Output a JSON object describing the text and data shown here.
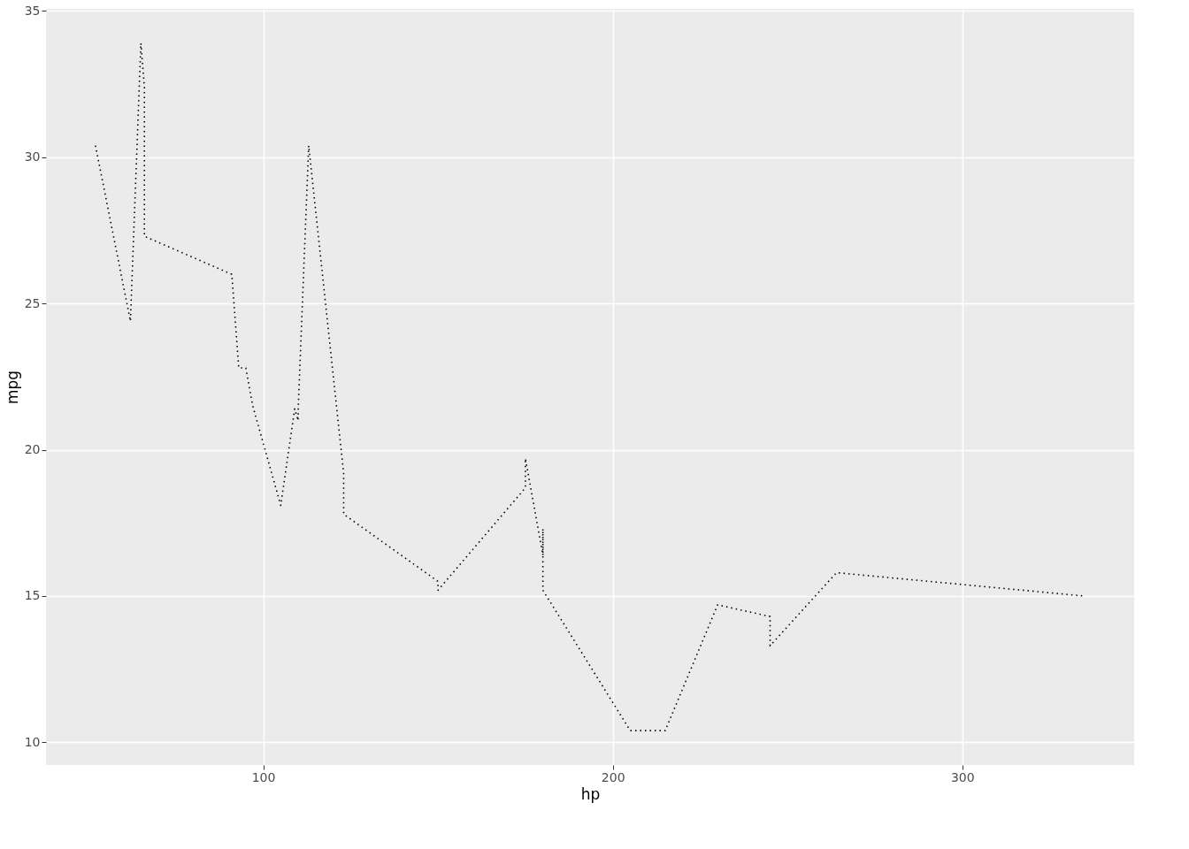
{
  "chart_data": {
    "type": "line",
    "xlabel": "hp",
    "ylabel": "mpg",
    "x": [
      52,
      62,
      65,
      66,
      66,
      91,
      93,
      95,
      97,
      105,
      109,
      110,
      110,
      110,
      113,
      123,
      123,
      150,
      150,
      175,
      175,
      175,
      180,
      180,
      180,
      205,
      215,
      230,
      245,
      245,
      264,
      335
    ],
    "series": [
      {
        "color": "#000000",
        "values": [
          30.4,
          24.4,
          33.9,
          32.4,
          27.3,
          26.0,
          22.8,
          22.8,
          21.5,
          18.1,
          21.4,
          21.0,
          21.0,
          21.4,
          30.4,
          19.2,
          17.8,
          15.5,
          15.2,
          18.7,
          19.2,
          19.7,
          16.4,
          17.3,
          15.2,
          10.4,
          10.4,
          14.7,
          14.3,
          13.3,
          15.8,
          15.0
        ]
      }
    ],
    "xlim": [
      37.85,
      349.15
    ],
    "ylim": [
      9.225,
      35.075
    ],
    "xticks": [
      100,
      200,
      300
    ],
    "yticks": [
      10,
      15,
      20,
      25,
      30,
      35
    ],
    "grid": true,
    "line_style": "dotted",
    "marker": "none"
  }
}
